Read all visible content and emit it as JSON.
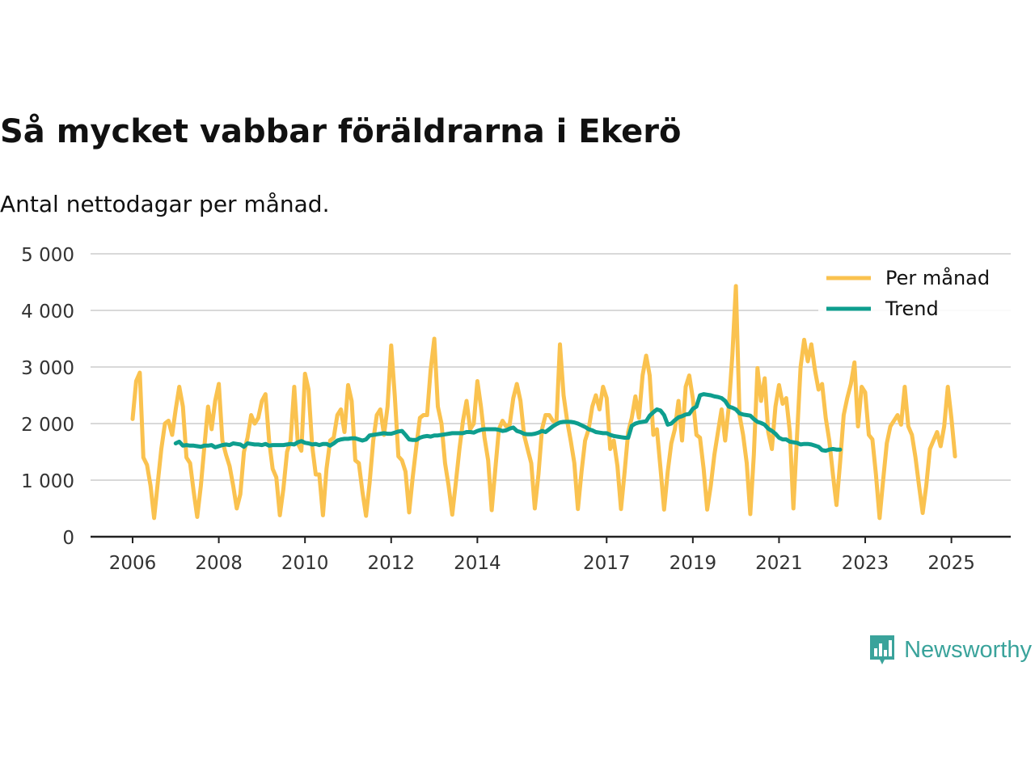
{
  "title": "Så mycket vabbar föräldrarna i Ekerö",
  "subtitle": "Antal nettodagar per månad.",
  "brand": {
    "name": "Newsworthy",
    "icon": "bar-chart-speech-bubble-icon"
  },
  "colors": {
    "per_month": "#FAC24F",
    "trend": "#0E9E8E",
    "grid": "#d9d9d9",
    "axis": "#222222",
    "brand": "#3aa39b"
  },
  "chart_data": {
    "type": "line",
    "title": "Så mycket vabbar föräldrarna i Ekerö",
    "subtitle": "Antal nettodagar per månad.",
    "xlabel": "",
    "ylabel": "",
    "ylim": [
      0,
      5000
    ],
    "yticks": [
      {
        "value": 0,
        "label": "0"
      },
      {
        "value": 1000,
        "label": "1 000"
      },
      {
        "value": 2000,
        "label": "2 000"
      },
      {
        "value": 3000,
        "label": "3 000"
      },
      {
        "value": 4000,
        "label": "4 000"
      },
      {
        "value": 5000,
        "label": "5 000"
      }
    ],
    "xlim": [
      2006.0,
      2025.42
    ],
    "xticks": [
      {
        "value": 2006,
        "label": "2006"
      },
      {
        "value": 2008,
        "label": "2008"
      },
      {
        "value": 2010,
        "label": "2010"
      },
      {
        "value": 2012,
        "label": "2012"
      },
      {
        "value": 2014,
        "label": "2014"
      },
      {
        "value": 2017,
        "label": "2017"
      },
      {
        "value": 2019,
        "label": "2019"
      },
      {
        "value": 2021,
        "label": "2021"
      },
      {
        "value": 2023,
        "label": "2023"
      },
      {
        "value": 2025,
        "label": "2025"
      }
    ],
    "grid": true,
    "legend_position": "top-right",
    "start": "2006-01",
    "series": [
      {
        "name": "Per månad",
        "color": "#FAC24F",
        "values": [
          2080,
          2750,
          2900,
          1400,
          1270,
          900,
          330,
          950,
          1550,
          2000,
          2050,
          1800,
          2250,
          2650,
          2300,
          1400,
          1300,
          800,
          350,
          900,
          1600,
          2300,
          1900,
          2400,
          2700,
          1700,
          1450,
          1250,
          900,
          500,
          750,
          1500,
          1750,
          2150,
          2000,
          2100,
          2400,
          2520,
          1700,
          1200,
          1050,
          380,
          850,
          1500,
          1700,
          2650,
          1650,
          1520,
          2880,
          2600,
          1600,
          1100,
          1100,
          380,
          1200,
          1700,
          1750,
          2150,
          2250,
          1850,
          2680,
          2400,
          1350,
          1300,
          800,
          370,
          950,
          1700,
          2150,
          2250,
          1800,
          2300,
          3380,
          2500,
          1420,
          1350,
          1150,
          430,
          1050,
          1600,
          2100,
          2150,
          2150,
          2950,
          3500,
          2300,
          2000,
          1300,
          900,
          390,
          950,
          1550,
          2050,
          2400,
          1900,
          2000,
          2750,
          2300,
          1750,
          1350,
          470,
          1200,
          1900,
          2050,
          1950,
          1980,
          2450,
          2700,
          2400,
          1800,
          1550,
          1300,
          500,
          1100,
          1900,
          2150,
          2150,
          2050,
          2000,
          3400,
          2500,
          2050,
          1700,
          1300,
          490,
          1150,
          1700,
          1900,
          2300,
          2500,
          2250,
          2650,
          2450,
          1550,
          1700,
          1250,
          490,
          1150,
          1850,
          2100,
          2480,
          2100,
          2850,
          3200,
          2850,
          1800,
          1900,
          1200,
          480,
          1150,
          1650,
          1900,
          2400,
          1700,
          2650,
          2850,
          2450,
          1800,
          1750,
          1200,
          480,
          900,
          1450,
          1850,
          2250,
          1700,
          2300,
          3200,
          4430,
          2150,
          1800,
          1300,
          400,
          1450,
          2980,
          2400,
          2800,
          1850,
          1550,
          2300,
          2680,
          2350,
          2450,
          1850,
          500,
          1750,
          3000,
          3480,
          3100,
          3400,
          2950,
          2600,
          2700,
          2100,
          1700,
          1100,
          560,
          1300,
          2150,
          2450,
          2700,
          3080,
          1950,
          2650,
          2550,
          1800,
          1720,
          1100,
          330,
          1000,
          1650,
          1950,
          2050,
          2150,
          1980,
          2650,
          1950,
          1800,
          1400,
          900,
          420,
          900,
          1550,
          1700,
          1850,
          1600,
          1950,
          2650,
          2100,
          1420
        ]
      },
      {
        "name": "Trend",
        "color": "#0E9E8E",
        "start_index": 12,
        "values": [
          1650,
          1680,
          1610,
          1620,
          1610,
          1610,
          1600,
          1590,
          1610,
          1610,
          1620,
          1580,
          1600,
          1620,
          1630,
          1620,
          1650,
          1640,
          1630,
          1590,
          1650,
          1640,
          1630,
          1630,
          1620,
          1640,
          1610,
          1620,
          1620,
          1620,
          1620,
          1630,
          1640,
          1630,
          1670,
          1690,
          1660,
          1650,
          1630,
          1640,
          1620,
          1640,
          1640,
          1610,
          1650,
          1700,
          1720,
          1730,
          1730,
          1740,
          1740,
          1720,
          1700,
          1720,
          1790,
          1800,
          1810,
          1820,
          1830,
          1820,
          1820,
          1840,
          1860,
          1870,
          1800,
          1720,
          1710,
          1710,
          1750,
          1770,
          1780,
          1770,
          1790,
          1790,
          1800,
          1810,
          1820,
          1830,
          1830,
          1830,
          1830,
          1850,
          1850,
          1840,
          1870,
          1890,
          1900,
          1900,
          1900,
          1900,
          1890,
          1870,
          1880,
          1910,
          1930,
          1870,
          1850,
          1820,
          1810,
          1810,
          1820,
          1840,
          1870,
          1850,
          1900,
          1950,
          1990,
          2020,
          2030,
          2030,
          2030,
          2020,
          2000,
          1970,
          1940,
          1900,
          1880,
          1850,
          1840,
          1830,
          1830,
          1800,
          1780,
          1770,
          1760,
          1750,
          1750,
          1960,
          2000,
          2020,
          2030,
          2040,
          2140,
          2200,
          2250,
          2230,
          2150,
          1980,
          2000,
          2060,
          2110,
          2130,
          2160,
          2170,
          2260,
          2300,
          2500,
          2520,
          2510,
          2500,
          2480,
          2470,
          2450,
          2400,
          2300,
          2280,
          2250,
          2180,
          2160,
          2150,
          2140,
          2080,
          2030,
          2010,
          1980,
          1910,
          1870,
          1820,
          1750,
          1720,
          1720,
          1680,
          1670,
          1660,
          1630,
          1640,
          1640,
          1630,
          1610,
          1590,
          1530,
          1520,
          1540,
          1550,
          1540,
          1540
        ]
      }
    ]
  }
}
